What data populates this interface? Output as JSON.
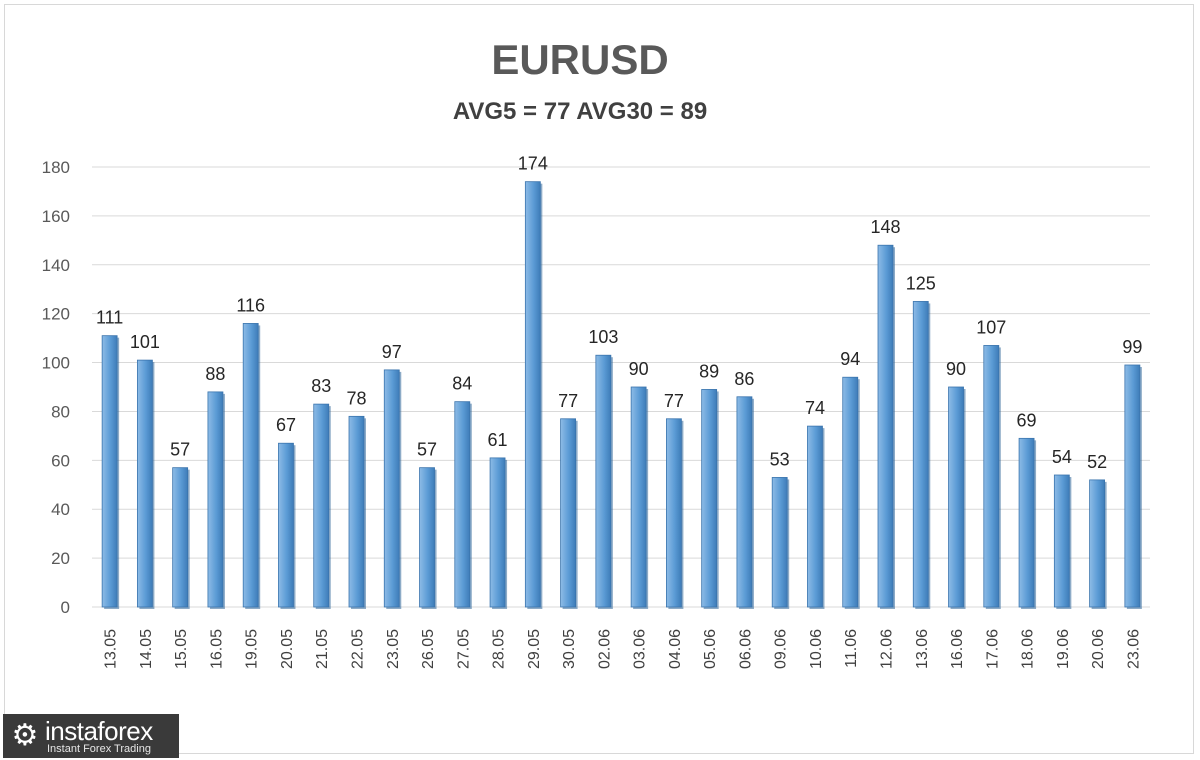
{
  "chart_data": {
    "type": "bar",
    "title": "EURUSD",
    "subtitle": "AVG5 = 77 AVG30 = 89",
    "xlabel": "",
    "ylabel": "",
    "ylim": [
      0,
      180
    ],
    "yticks": [
      0,
      20,
      40,
      60,
      80,
      100,
      120,
      140,
      160,
      180
    ],
    "grid": true,
    "legend": "none",
    "bar_color": "#5b9bd5",
    "categories": [
      "13.05",
      "14.05",
      "15.05",
      "16.05",
      "19.05",
      "20.05",
      "21.05",
      "22.05",
      "23.05",
      "26.05",
      "27.05",
      "28.05",
      "29.05",
      "30.05",
      "02.06",
      "03.06",
      "04.06",
      "05.06",
      "06.06",
      "09.06",
      "10.06",
      "11.06",
      "12.06",
      "13.06",
      "16.06",
      "17.06",
      "18.06",
      "19.06",
      "20.06",
      "23.06"
    ],
    "values": [
      111,
      101,
      57,
      88,
      116,
      67,
      83,
      78,
      97,
      57,
      84,
      61,
      174,
      77,
      103,
      90,
      77,
      89,
      86,
      53,
      74,
      94,
      148,
      125,
      90,
      107,
      69,
      54,
      52,
      99
    ]
  },
  "logo": {
    "icon": "gear-icon",
    "brand": "instaforex",
    "tagline": "Instant Forex Trading"
  }
}
